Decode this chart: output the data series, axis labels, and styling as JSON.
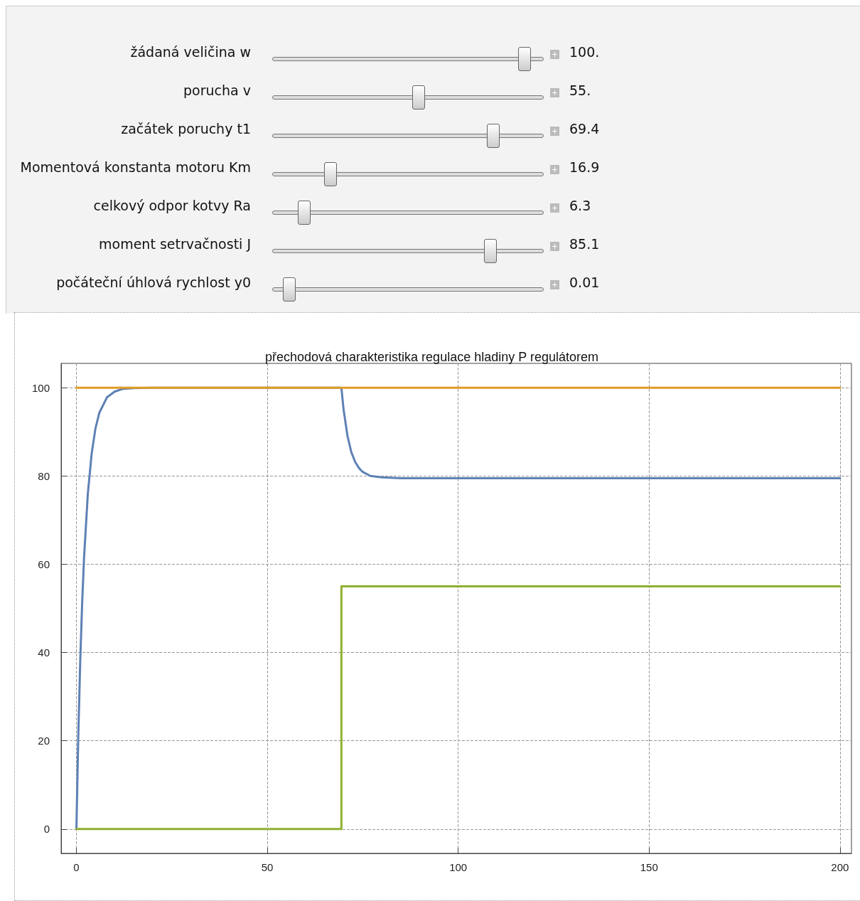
{
  "chart_data": {
    "type": "line",
    "title": "přechodová charakteristika regulace hladiny P regulátorem",
    "xlim": [
      -4,
      203
    ],
    "xticks": [
      0,
      50,
      100,
      150,
      200
    ],
    "ylim": [
      -5.5,
      105.5
    ],
    "yticks": [
      0,
      20,
      40,
      60,
      80,
      100
    ],
    "grid": true,
    "marker": "none",
    "line_style": "solid",
    "series": [
      {
        "color": "#5e81b5",
        "x": [
          0,
          0.5,
          1,
          1.5,
          2,
          3,
          4,
          5,
          6,
          8,
          10,
          12,
          15,
          20,
          69.4,
          70,
          71,
          72,
          73,
          74,
          75,
          77,
          80,
          85,
          200
        ],
        "values": [
          0,
          21.2,
          37.9,
          51,
          61.4,
          76,
          85.1,
          90.8,
          94.3,
          97.8,
          99.1,
          99.7,
          99.9,
          100,
          100,
          94.9,
          89.1,
          85.4,
          83.2,
          81.8,
          80.9,
          80,
          79.7,
          79.5,
          79.5
        ]
      },
      {
        "color": "#e19c24",
        "x": [
          0,
          200
        ],
        "values": [
          100,
          100
        ]
      },
      {
        "type": "step",
        "color": "#8fb032",
        "x": [
          0,
          69.4,
          200
        ],
        "values": [
          0,
          55,
          55
        ]
      }
    ],
    "annotations": [
      "žádaná veličina w",
      "100.",
      "porucha v",
      "55.",
      "začátek poruchy t1",
      "69.4",
      "Momentová konstanta motoru Km",
      "16.9",
      "celkový odpor kotvy Ra",
      "6.3",
      "moment setrvačnosti J",
      "85.1",
      "počáteční úhlová rychlost y0",
      "0.01"
    ]
  }
}
